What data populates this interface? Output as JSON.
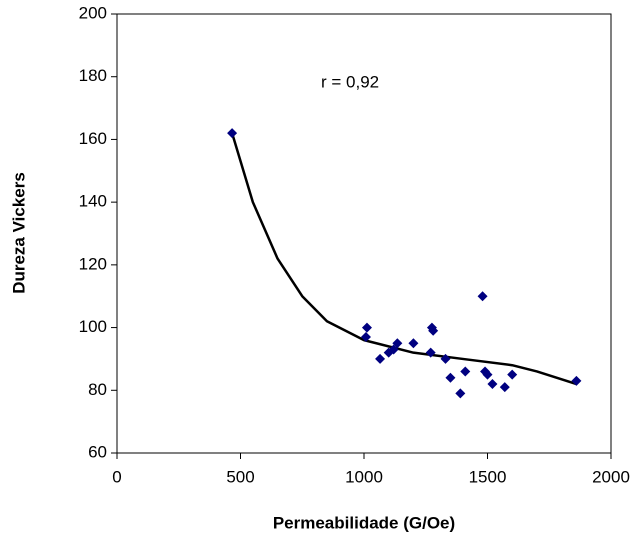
{
  "chart_data": {
    "type": "scatter",
    "xlabel": "Permeabilidade (G/Oe)",
    "ylabel": "Dureza Vickers",
    "annotation": "r = 0,92",
    "xlim": [
      0,
      2000
    ],
    "xticks": [
      0,
      500,
      1000,
      1500,
      2000
    ],
    "ylim": [
      60,
      200
    ],
    "yticks": [
      60,
      80,
      100,
      120,
      140,
      160,
      180,
      200
    ],
    "grid": false,
    "color": "#000080",
    "x": [
      466,
      1012,
      1008,
      1065,
      1100,
      1120,
      1135,
      1200,
      1270,
      1275,
      1280,
      1330,
      1350,
      1390,
      1410,
      1480,
      1490,
      1500,
      1520,
      1570,
      1600,
      1860
    ],
    "values": [
      162,
      100,
      97,
      90,
      92,
      93,
      95,
      95,
      92,
      100,
      99,
      90,
      84,
      79,
      86,
      110,
      86,
      85,
      82,
      81,
      85,
      83
    ],
    "trendline": {
      "color": "#000000",
      "x": [
        466,
        550,
        650,
        750,
        850,
        1000,
        1200,
        1400,
        1600,
        1700,
        1860
      ],
      "values": [
        162,
        140,
        122,
        110,
        102,
        96,
        92,
        90,
        88,
        86,
        82
      ]
    }
  }
}
